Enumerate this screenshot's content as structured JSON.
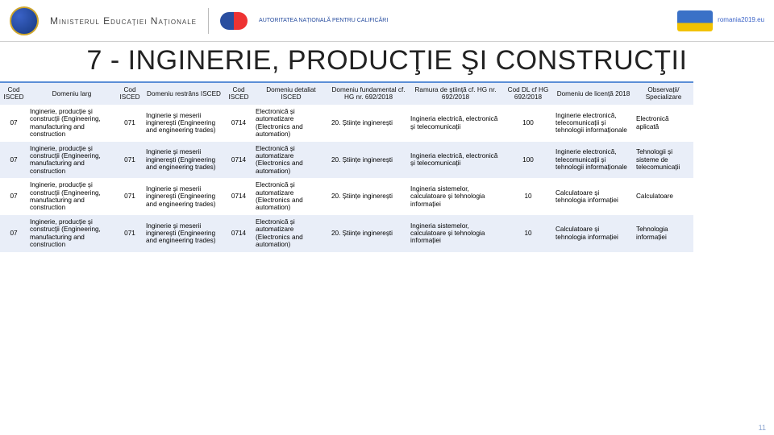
{
  "header": {
    "ministry": "Ministerul Educaţiei Naţionale",
    "anc": "AUTORITATEA NAȚIONALĂ PENTRU CALIFICĂRI",
    "ro2019": "romania2019.eu"
  },
  "title": "7 - INGINERIE, PRODUCŢIE ŞI CONSTRUCŢII",
  "columns": [
    "Cod ISCED",
    "Domeniu larg",
    "Cod ISCED",
    "Domeniu restrâns ISCED",
    "Cod ISCED",
    "Domeniu detaliat ISCED",
    "Domeniu fundamental cf. HG nr. 692/2018",
    "Ramura de știință cf. HG nr. 692/2018",
    "Cod DL cf HG 692/2018",
    "Domeniu de licență 2018",
    "Observații/ Specializare"
  ],
  "rows": [
    {
      "cod1": "07",
      "dom_larg": "Inginerie, producţie şi construcţii (Engineering, manufacturing and construction",
      "cod2": "071",
      "dom_restr": "Inginerie şi meserii inginereşti (Engineering and engineering trades)",
      "cod3": "0714",
      "dom_det": "Electronică și automatizare (Electronics and automation)",
      "dom_fund": "20. Științe inginerești",
      "ramura": "Ingineria electrică, electronică și telecomunicații",
      "cod_dl": "100",
      "dom_lic": "Inginerie electronică, telecomunicații și tehnologii informaționale",
      "obs": "Electronică aplicată"
    },
    {
      "cod1": "07",
      "dom_larg": "Inginerie, producţie şi construcţii (Engineering, manufacturing and construction",
      "cod2": "071",
      "dom_restr": "Inginerie şi meserii inginereşti (Engineering and engineering trades)",
      "cod3": "0714",
      "dom_det": "Electronică și automatizare (Electronics and automation)",
      "dom_fund": "20. Științe inginerești",
      "ramura": "Ingineria electrică, electronică și telecomunicații",
      "cod_dl": "100",
      "dom_lic": "Inginerie electronică, telecomunicații și tehnologii informaționale",
      "obs": "Tehnologii și sisteme de telecomunicații"
    },
    {
      "cod1": "07",
      "dom_larg": "Inginerie, producţie şi construcţii (Engineering, manufacturing and construction",
      "cod2": "071",
      "dom_restr": "Inginerie şi meserii inginereşti (Engineering and engineering trades)",
      "cod3": "0714",
      "dom_det": "Electronică și automatizare (Electronics and automation)",
      "dom_fund": "20. Științe inginerești",
      "ramura": "Ingineria sistemelor, calculatoare și tehnologia informației",
      "cod_dl": "10",
      "dom_lic": "Calculatoare și tehnologia informației",
      "obs": "Calculatoare"
    },
    {
      "cod1": "07",
      "dom_larg": "Inginerie, producţie şi construcţii (Engineering, manufacturing and construction",
      "cod2": "071",
      "dom_restr": "Inginerie şi meserii inginereşti (Engineering and engineering trades)",
      "cod3": "0714",
      "dom_det": "Electronică și automatizare (Electronics and automation)",
      "dom_fund": "20. Științe inginerești",
      "ramura": "Ingineria sistemelor, calculatoare și tehnologia informației",
      "cod_dl": "10",
      "dom_lic": "Calculatoare și tehnologia informației",
      "obs": "Tehnologia informației"
    }
  ],
  "page_number": "11",
  "colors": {
    "header_band": "#e9eef8",
    "header_border": "#5b8ed6",
    "text": "#111111"
  }
}
